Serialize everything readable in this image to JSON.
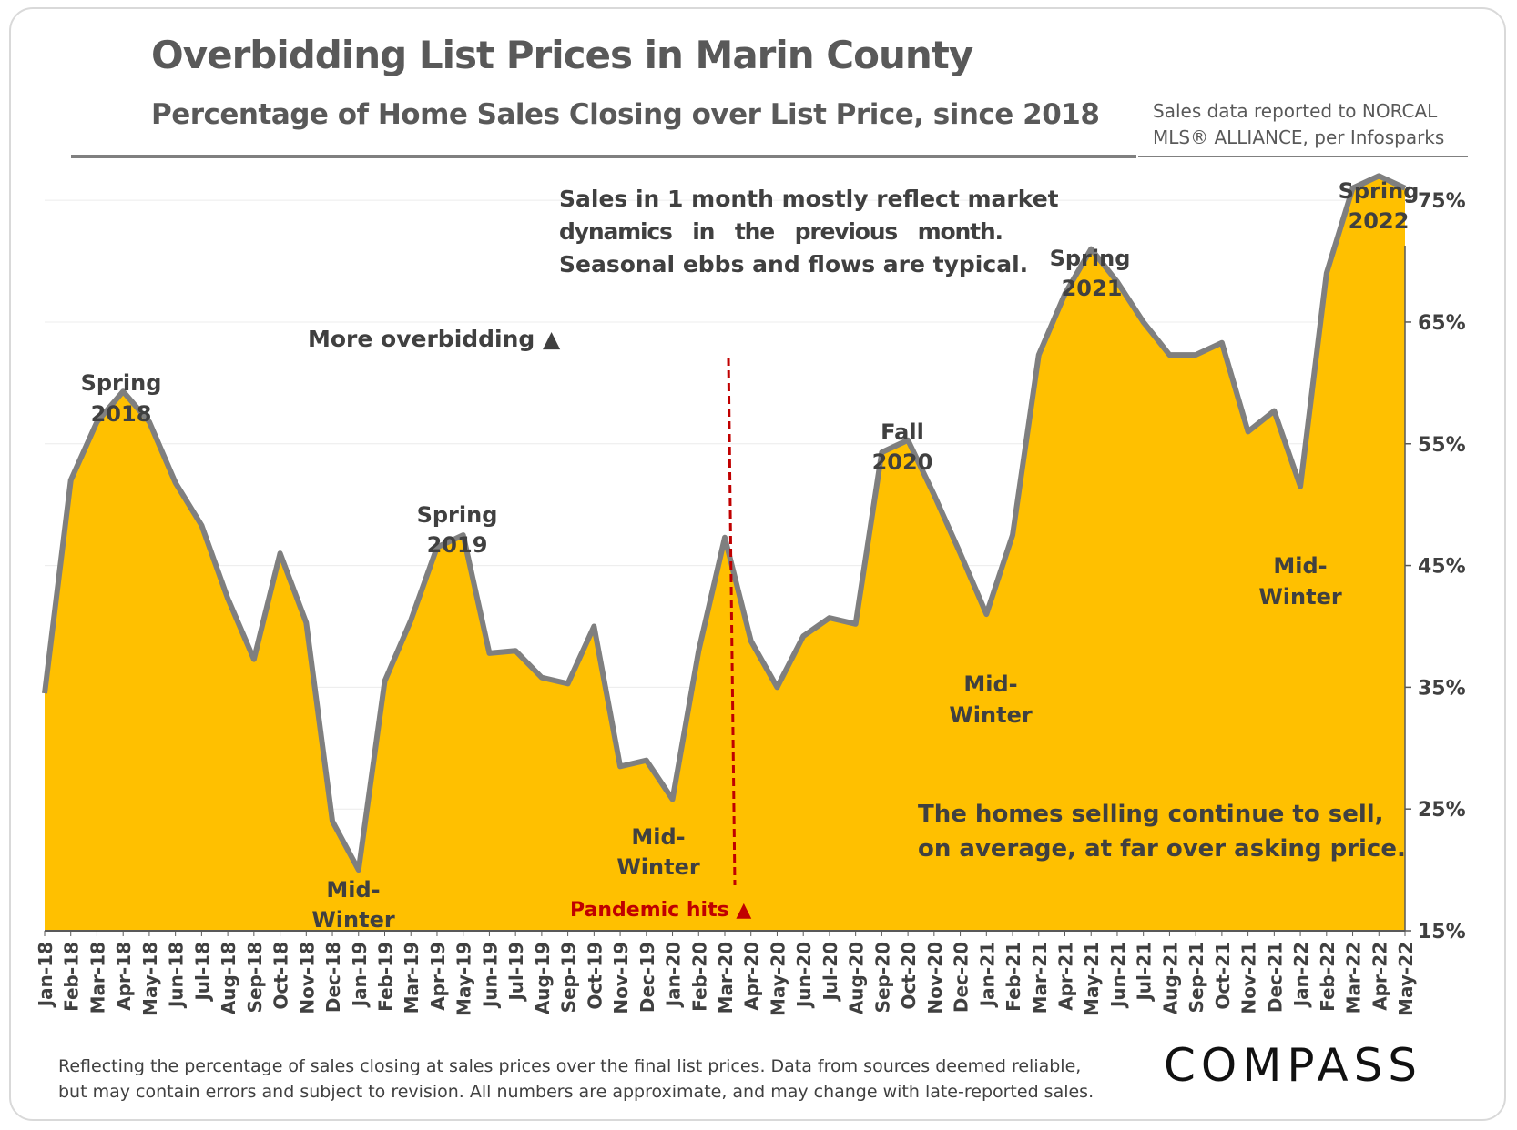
{
  "header": {
    "title": "Overbidding List Prices in Marin County",
    "subtitle": "Percentage of Home Sales Closing over List Price, since 2018",
    "source_line1": "Sales data reported to NORCAL",
    "source_line2": "MLS® ALLIANCE, per Infosparks"
  },
  "annotations": {
    "note_line1": "Sales in 1 month mostly reflect market",
    "note_line2": "dynamics   in   the   previous   month.",
    "note_line3": "Seasonal ebbs and flows are typical.",
    "more_overbidding": "More overbidding ▲",
    "pandemic": "Pandemic hits ▲",
    "conclusion_line1": "The homes selling continue to sell,",
    "conclusion_line2": "on average, at far over asking price.",
    "spring2018": [
      "Spring",
      "2018"
    ],
    "spring2019": [
      "Spring",
      "2019"
    ],
    "fall2020": [
      "Fall",
      "2020"
    ],
    "spring2021": [
      "Spring",
      "2021"
    ],
    "spring2022": [
      "Spring",
      "2022"
    ],
    "midwinter2019": [
      "Mid-",
      "Winter"
    ],
    "midwinter2020": [
      "Mid-",
      "Winter"
    ],
    "midwinter2021": [
      "Mid-",
      "Winter"
    ],
    "midwinter2022": [
      "Mid-",
      "Winter"
    ]
  },
  "footer": {
    "footnote_line1": "Reflecting the percentage of sales closing at sales prices over the final list prices. Data from sources deemed reliable,",
    "footnote_line2": "but may contain errors and subject to revision. All numbers are approximate, and may change with late-reported sales.",
    "logo": "COMPASS"
  },
  "colors": {
    "area_fill": "#FFC000",
    "line": "#7F7F7F",
    "pandemic": "#C00000",
    "text": "#404040"
  },
  "chart_data": {
    "type": "area",
    "x": [
      "Jan-18",
      "Feb-18",
      "Mar-18",
      "Apr-18",
      "May-18",
      "Jun-18",
      "Jul-18",
      "Aug-18",
      "Sep-18",
      "Oct-18",
      "Nov-18",
      "Dec-18",
      "Jan-19",
      "Feb-19",
      "Mar-19",
      "Apr-19",
      "May-19",
      "Jun-19",
      "Jul-19",
      "Aug-19",
      "Sep-19",
      "Oct-19",
      "Nov-19",
      "Dec-19",
      "Jan-20",
      "Feb-20",
      "Mar-20",
      "Apr-20",
      "May-20",
      "Jun-20",
      "Jul-20",
      "Aug-20",
      "Sep-20",
      "Oct-20",
      "Nov-20",
      "Dec-20",
      "Jan-21",
      "Feb-21",
      "Mar-21",
      "Apr-21",
      "May-21",
      "Jun-21",
      "Jul-21",
      "Aug-21",
      "Sep-21",
      "Oct-21",
      "Nov-21",
      "Dec-21",
      "Jan-22",
      "Feb-22",
      "Mar-22",
      "Apr-22",
      "May-22"
    ],
    "values": [
      34.5,
      52.0,
      56.8,
      59.3,
      56.8,
      51.8,
      48.3,
      42.3,
      37.3,
      46.0,
      40.3,
      24.0,
      20.0,
      35.5,
      40.5,
      46.5,
      47.5,
      37.8,
      38.0,
      35.8,
      35.3,
      40.0,
      28.5,
      29.0,
      25.8,
      38.0,
      47.3,
      38.8,
      35.0,
      39.2,
      40.7,
      40.2,
      54.3,
      55.3,
      50.8,
      46.0,
      41.0,
      47.5,
      62.3,
      67.3,
      71.0,
      68.3,
      65.0,
      62.3,
      62.3,
      63.3,
      56.0,
      57.7,
      51.5,
      69.0,
      76.0,
      77.0,
      76.0
    ],
    "yticks": [
      "15%",
      "25%",
      "35%",
      "45%",
      "55%",
      "65%",
      "75%"
    ],
    "ylim": [
      15,
      78
    ],
    "grid": true,
    "pandemic_marker": "Mar-20"
  }
}
